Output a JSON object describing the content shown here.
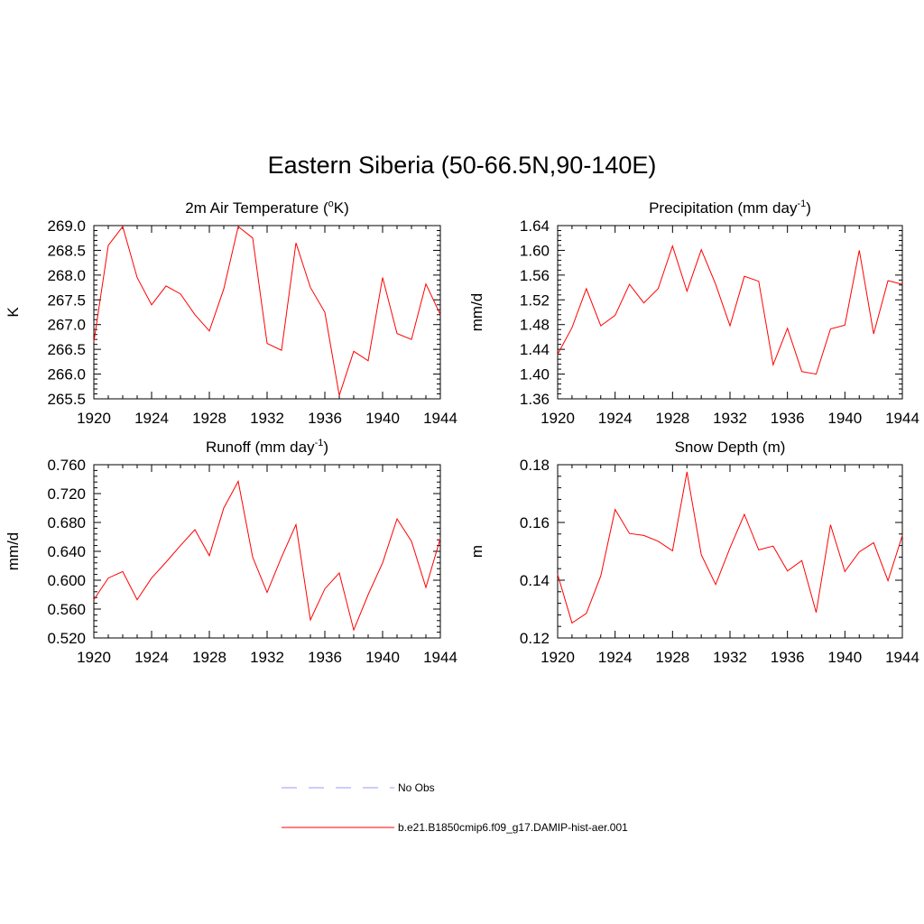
{
  "title": "Eastern Siberia (50-66.5N,90-140E)",
  "legend": [
    {
      "label": "No Obs",
      "color": "#9999ff",
      "dash": "dashed"
    },
    {
      "label": "b.e21.B1850cmip6.f09_g17.DAMIP-hist-aer.001",
      "color": "#ff0000",
      "dash": "solid"
    }
  ],
  "chart_data": [
    {
      "type": "line",
      "title": "2m Air Temperature (°K)",
      "title_main": "2m Air Temperature (",
      "title_sup": "o",
      "title_tail": "K)",
      "ylabel": "K",
      "xlim": [
        1920,
        1944
      ],
      "ylim": [
        265.5,
        269.0
      ],
      "xticks": [
        "1920",
        "1924",
        "1928",
        "1932",
        "1936",
        "1940",
        "1944"
      ],
      "yticks": [
        "265.5",
        "266.0",
        "266.5",
        "267.0",
        "267.5",
        "268.0",
        "268.5",
        "269.0"
      ],
      "series": [
        {
          "color": "#ff0000",
          "x": [
            1920,
            1921,
            1922,
            1923,
            1924,
            1925,
            1926,
            1927,
            1928,
            1929,
            1930,
            1931,
            1932,
            1933,
            1934,
            1935,
            1936,
            1937,
            1938,
            1939,
            1940,
            1941,
            1942,
            1943,
            1944
          ],
          "values": [
            266.65,
            268.6,
            268.98,
            267.95,
            267.4,
            267.78,
            267.62,
            267.2,
            266.87,
            267.72,
            268.98,
            268.75,
            266.62,
            266.48,
            268.65,
            267.75,
            267.25,
            265.57,
            266.46,
            266.27,
            267.95,
            266.82,
            266.7,
            267.82,
            267.2
          ]
        }
      ]
    },
    {
      "type": "line",
      "title": "Precipitation (mm day-1)",
      "title_main": "Precipitation (mm day",
      "title_sup": "-1",
      "title_tail": ")",
      "ylabel": "mm/d",
      "xlim": [
        1920,
        1944
      ],
      "ylim": [
        1.36,
        1.64
      ],
      "xticks": [
        "1920",
        "1924",
        "1928",
        "1932",
        "1936",
        "1940",
        "1944"
      ],
      "yticks": [
        "1.36",
        "1.40",
        "1.44",
        "1.48",
        "1.52",
        "1.56",
        "1.60",
        "1.64"
      ],
      "series": [
        {
          "color": "#ff0000",
          "x": [
            1920,
            1921,
            1922,
            1923,
            1924,
            1925,
            1926,
            1927,
            1928,
            1929,
            1930,
            1931,
            1932,
            1933,
            1934,
            1935,
            1936,
            1937,
            1938,
            1939,
            1940,
            1941,
            1942,
            1943,
            1944
          ],
          "values": [
            1.432,
            1.475,
            1.538,
            1.478,
            1.495,
            1.545,
            1.515,
            1.538,
            1.607,
            1.534,
            1.601,
            1.545,
            1.478,
            1.558,
            1.55,
            1.415,
            1.474,
            1.404,
            1.4,
            1.473,
            1.479,
            1.6,
            1.465,
            1.551,
            1.545
          ]
        }
      ]
    },
    {
      "type": "line",
      "title": "Runoff (mm day-1)",
      "title_main": "Runoff (mm day",
      "title_sup": "-1",
      "title_tail": ")",
      "ylabel": "mm/d",
      "xlim": [
        1920,
        1944
      ],
      "ylim": [
        0.52,
        0.76
      ],
      "xticks": [
        "1920",
        "1924",
        "1928",
        "1932",
        "1936",
        "1940",
        "1944"
      ],
      "yticks": [
        "0.520",
        "0.560",
        "0.600",
        "0.640",
        "0.680",
        "0.720",
        "0.760"
      ],
      "series": [
        {
          "color": "#ff0000",
          "x": [
            1920,
            1921,
            1922,
            1923,
            1924,
            1925,
            1926,
            1927,
            1928,
            1929,
            1930,
            1931,
            1932,
            1933,
            1934,
            1935,
            1936,
            1937,
            1938,
            1939,
            1940,
            1941,
            1942,
            1943,
            1944
          ],
          "values": [
            0.573,
            0.603,
            0.612,
            0.573,
            0.603,
            0.625,
            0.648,
            0.67,
            0.634,
            0.7,
            0.737,
            0.632,
            0.583,
            0.632,
            0.677,
            0.545,
            0.588,
            0.61,
            0.531,
            0.58,
            0.624,
            0.685,
            0.654,
            0.59,
            0.658
          ]
        }
      ]
    },
    {
      "type": "line",
      "title": "Snow Depth (m)",
      "title_main": "Snow Depth (m)",
      "title_sup": "",
      "title_tail": "",
      "ylabel": "m",
      "xlim": [
        1920,
        1944
      ],
      "ylim": [
        0.12,
        0.18
      ],
      "xticks": [
        "1920",
        "1924",
        "1928",
        "1932",
        "1936",
        "1940",
        "1944"
      ],
      "yticks": [
        "0.12",
        "0.14",
        "0.16",
        "0.18"
      ],
      "series": [
        {
          "color": "#ff0000",
          "x": [
            1920,
            1921,
            1922,
            1923,
            1924,
            1925,
            1926,
            1927,
            1928,
            1929,
            1930,
            1931,
            1932,
            1933,
            1934,
            1935,
            1936,
            1937,
            1938,
            1939,
            1940,
            1941,
            1942,
            1943,
            1944
          ],
          "values": [
            0.142,
            0.1252,
            0.1285,
            0.1415,
            0.1645,
            0.1562,
            0.1555,
            0.1535,
            0.1502,
            0.1775,
            0.1488,
            0.1385,
            0.1512,
            0.1628,
            0.1505,
            0.1518,
            0.1432,
            0.1468,
            0.1288,
            0.1592,
            0.143,
            0.1498,
            0.153,
            0.1398,
            0.1555
          ]
        }
      ]
    }
  ]
}
